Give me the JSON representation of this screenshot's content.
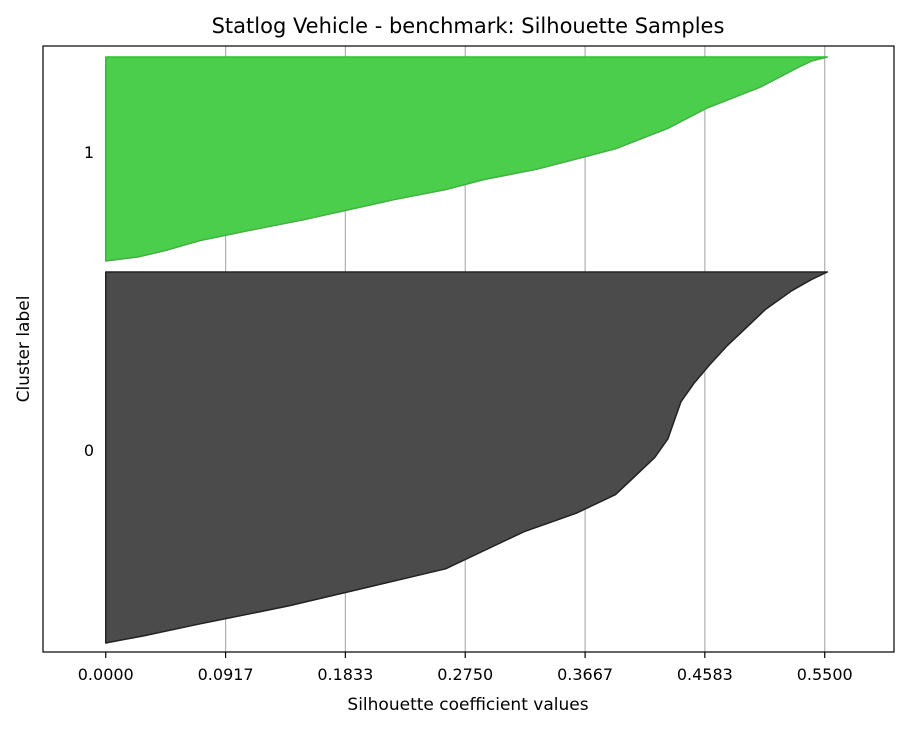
{
  "chart_data": {
    "type": "area",
    "title": "Statlog Vehicle - benchmark: Silhouette Samples",
    "xlabel": "Silhouette coefficient values",
    "ylabel": "Cluster label",
    "xlim": [
      -0.048,
      0.603
    ],
    "x_ticks": [
      "0.0000",
      "0.0917",
      "0.1833",
      "0.2750",
      "0.3667",
      "0.4583",
      "0.5500"
    ],
    "x_tick_values": [
      0.0,
      0.0917,
      0.1833,
      0.275,
      0.3667,
      0.4583,
      0.55
    ],
    "grid": "vertical",
    "series": [
      {
        "name": "1",
        "color": "#4bce4b",
        "edge_color": "#2fbf2f",
        "sample_range": [
          0.0,
          1.0
        ],
        "profile": [
          [
            0.0,
            0.0
          ],
          [
            0.02,
            0.025
          ],
          [
            0.05,
            0.045
          ],
          [
            0.1,
            0.072
          ],
          [
            0.15,
            0.11
          ],
          [
            0.2,
            0.15
          ],
          [
            0.25,
            0.185
          ],
          [
            0.3,
            0.22
          ],
          [
            0.35,
            0.26
          ],
          [
            0.4,
            0.29
          ],
          [
            0.45,
            0.33
          ],
          [
            0.5,
            0.36
          ],
          [
            0.55,
            0.39
          ],
          [
            0.6,
            0.41
          ],
          [
            0.65,
            0.43
          ],
          [
            0.7,
            0.445
          ],
          [
            0.75,
            0.46
          ],
          [
            0.8,
            0.48
          ],
          [
            0.85,
            0.5
          ],
          [
            0.9,
            0.515
          ],
          [
            0.95,
            0.53
          ],
          [
            0.98,
            0.54
          ],
          [
            1.0,
            0.552
          ]
        ]
      },
      {
        "name": "0",
        "color": "#4b4b4b",
        "edge_color": "#222222",
        "sample_range": [
          0.0,
          1.0
        ],
        "profile": [
          [
            0.0,
            0.0
          ],
          [
            0.02,
            0.03
          ],
          [
            0.05,
            0.07
          ],
          [
            0.1,
            0.14
          ],
          [
            0.15,
            0.2
          ],
          [
            0.2,
            0.26
          ],
          [
            0.25,
            0.29
          ],
          [
            0.3,
            0.32
          ],
          [
            0.35,
            0.36
          ],
          [
            0.4,
            0.39
          ],
          [
            0.45,
            0.405
          ],
          [
            0.5,
            0.42
          ],
          [
            0.55,
            0.43
          ],
          [
            0.6,
            0.435
          ],
          [
            0.65,
            0.44
          ],
          [
            0.7,
            0.45
          ],
          [
            0.75,
            0.462
          ],
          [
            0.8,
            0.475
          ],
          [
            0.85,
            0.49
          ],
          [
            0.9,
            0.505
          ],
          [
            0.95,
            0.525
          ],
          [
            0.98,
            0.54
          ],
          [
            1.0,
            0.552
          ]
        ]
      }
    ],
    "y_ticks": [
      "1",
      "0"
    ]
  }
}
